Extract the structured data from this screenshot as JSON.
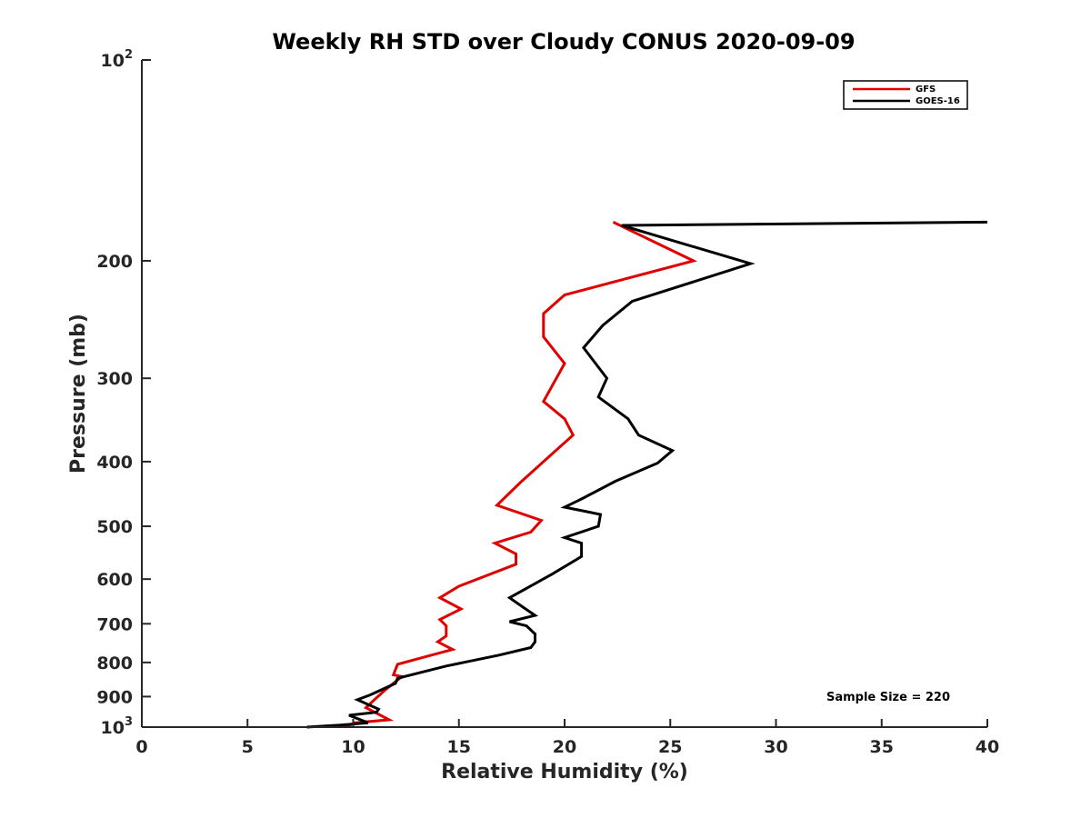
{
  "chart_data": {
    "type": "line",
    "title": "Weekly RH STD over Cloudy CONUS 2020-09-09",
    "xlabel": "Relative Humidity (%)",
    "ylabel": "Pressure (mb)",
    "xlim": [
      0,
      40
    ],
    "ylim": [
      100,
      1000
    ],
    "y_scale": "log",
    "y_reversed": true,
    "grid": false,
    "legend_position": "top-right",
    "x_ticks": [
      "0",
      "5",
      "10",
      "15",
      "20",
      "25",
      "30",
      "35",
      "40"
    ],
    "y_ticks": [
      {
        "value": 100,
        "base": "10",
        "exp": "2"
      },
      {
        "value": 200,
        "label": "200"
      },
      {
        "value": 300,
        "label": "300"
      },
      {
        "value": 400,
        "label": "400"
      },
      {
        "value": 500,
        "label": "500"
      },
      {
        "value": 600,
        "label": "600"
      },
      {
        "value": 700,
        "label": "700"
      },
      {
        "value": 800,
        "label": "800"
      },
      {
        "value": 900,
        "label": "900"
      },
      {
        "value": 1000,
        "base": "10",
        "exp": "3"
      }
    ],
    "series": [
      {
        "name": "GFS",
        "color": "#e00000",
        "points": [
          [
            22.3,
            175
          ],
          [
            26.1,
            200
          ],
          [
            20.0,
            225
          ],
          [
            19.0,
            240
          ],
          [
            19.0,
            260
          ],
          [
            20.0,
            285
          ],
          [
            19.0,
            325
          ],
          [
            20.0,
            345
          ],
          [
            20.4,
            365
          ],
          [
            19.0,
            400
          ],
          [
            17.9,
            430
          ],
          [
            16.8,
            465
          ],
          [
            18.9,
            490
          ],
          [
            18.4,
            510
          ],
          [
            16.7,
            530
          ],
          [
            17.7,
            550
          ],
          [
            17.7,
            570
          ],
          [
            15.0,
            615
          ],
          [
            14.1,
            640
          ],
          [
            15.1,
            665
          ],
          [
            14.1,
            690
          ],
          [
            14.4,
            705
          ],
          [
            14.4,
            730
          ],
          [
            14.0,
            745
          ],
          [
            14.7,
            765
          ],
          [
            13.7,
            780
          ],
          [
            12.1,
            805
          ],
          [
            11.9,
            835
          ],
          [
            12.3,
            840
          ],
          [
            11.5,
            880
          ],
          [
            11.0,
            910
          ],
          [
            10.6,
            935
          ],
          [
            11.7,
            975
          ],
          [
            10.1,
            985
          ],
          [
            9.6,
            1000
          ]
        ]
      },
      {
        "name": "GOES-16",
        "color": "#000000",
        "points": [
          [
            40.0,
            175
          ],
          [
            22.7,
            177
          ],
          [
            28.8,
            202
          ],
          [
            23.2,
            230
          ],
          [
            21.8,
            250
          ],
          [
            20.9,
            270
          ],
          [
            22.0,
            300
          ],
          [
            21.6,
            320
          ],
          [
            23.0,
            345
          ],
          [
            23.5,
            365
          ],
          [
            25.1,
            385
          ],
          [
            24.4,
            402
          ],
          [
            22.4,
            428
          ],
          [
            20.8,
            455
          ],
          [
            20.0,
            468
          ],
          [
            21.7,
            480
          ],
          [
            21.6,
            500
          ],
          [
            20.0,
            520
          ],
          [
            20.8,
            530
          ],
          [
            20.8,
            555
          ],
          [
            19.4,
            590
          ],
          [
            17.4,
            640
          ],
          [
            18.0,
            660
          ],
          [
            18.6,
            680
          ],
          [
            17.4,
            695
          ],
          [
            18.2,
            705
          ],
          [
            18.6,
            725
          ],
          [
            18.6,
            745
          ],
          [
            18.4,
            760
          ],
          [
            16.9,
            780
          ],
          [
            14.4,
            810
          ],
          [
            12.1,
            845
          ],
          [
            12.0,
            860
          ],
          [
            10.8,
            895
          ],
          [
            10.2,
            910
          ],
          [
            11.2,
            940
          ],
          [
            11.1,
            950
          ],
          [
            9.8,
            960
          ],
          [
            10.7,
            985
          ],
          [
            9.4,
            993
          ],
          [
            7.8,
            1000
          ]
        ]
      }
    ],
    "annotation": "Sample Size = 220"
  }
}
